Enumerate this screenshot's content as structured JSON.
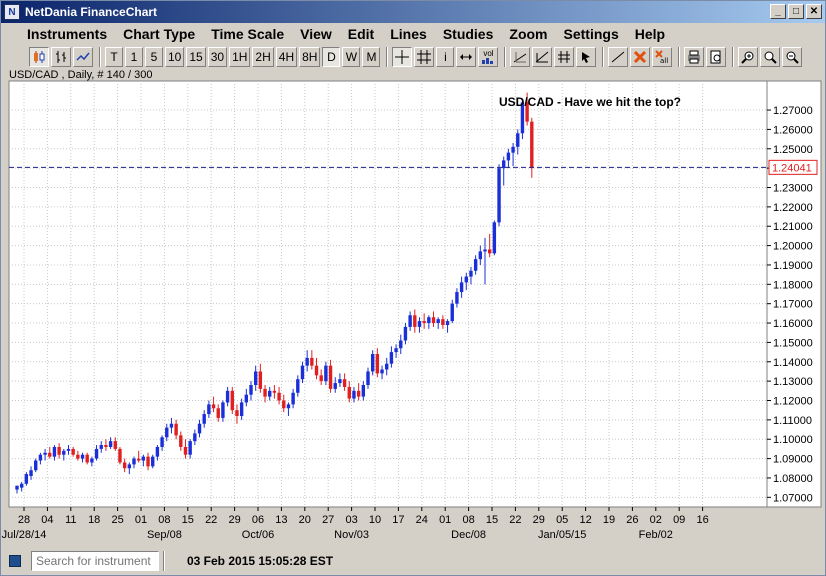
{
  "window": {
    "title": "NetDania FinanceChart"
  },
  "menu": [
    "Instruments",
    "Chart Type",
    "Time Scale",
    "View",
    "Edit",
    "Lines",
    "Studies",
    "Zoom",
    "Settings",
    "Help"
  ],
  "toolbar": {
    "periods": [
      "T",
      "1",
      "5",
      "10",
      "15",
      "30",
      "1H",
      "2H",
      "4H",
      "8H",
      "D",
      "W",
      "M"
    ],
    "active_period": "D",
    "vol_label": "vol",
    "info_label": "i"
  },
  "chart_label": "USD/CAD , Daily, # 140 / 300",
  "statusbar": {
    "search_placeholder": "Search for instrument",
    "datetime": "03 Feb 2015 15:05:28 EST"
  },
  "colors": {
    "up": "#1a2fd8",
    "down": "#e02020",
    "grid": "#c8c8c8",
    "price_line": "#202080",
    "price_label": "#e02020"
  },
  "chart_data": {
    "type": "candlestick",
    "instrument": "USD/CAD",
    "timeframe": "Daily",
    "annotation": "USD/CAD - Have we hit the top?",
    "current_price": "1.24041",
    "ylim": [
      1.065,
      1.285
    ],
    "yticks": [
      "1.07000",
      "1.08000",
      "1.09000",
      "1.10000",
      "1.11000",
      "1.12000",
      "1.13000",
      "1.14000",
      "1.15000",
      "1.16000",
      "1.17000",
      "1.18000",
      "1.19000",
      "1.20000",
      "1.21000",
      "1.22000",
      "1.23000",
      "1.24000",
      "1.25000",
      "1.26000",
      "1.27000"
    ],
    "xticks": [
      "28",
      "04",
      "11",
      "18",
      "25",
      "01",
      "08",
      "15",
      "22",
      "29",
      "06",
      "13",
      "20",
      "27",
      "03",
      "10",
      "17",
      "24",
      "01",
      "08",
      "15",
      "22",
      "29",
      "05",
      "12",
      "19",
      "26",
      "02",
      "09",
      "16"
    ],
    "month_labels": [
      {
        "label": "Jul/28/14",
        "tick": 0
      },
      {
        "label": "Sep/08",
        "tick": 6
      },
      {
        "label": "Oct/06",
        "tick": 10
      },
      {
        "label": "Nov/03",
        "tick": 14
      },
      {
        "label": "Dec/08",
        "tick": 19
      },
      {
        "label": "Jan/05/15",
        "tick": 23
      },
      {
        "label": "Feb/02",
        "tick": 27
      }
    ],
    "candles": [
      [
        1.074,
        1.076,
        1.072,
        1.076
      ],
      [
        1.075,
        1.078,
        1.073,
        1.077
      ],
      [
        1.077,
        1.083,
        1.076,
        1.082
      ],
      [
        1.081,
        1.086,
        1.079,
        1.084
      ],
      [
        1.084,
        1.09,
        1.083,
        1.089
      ],
      [
        1.089,
        1.093,
        1.087,
        1.092
      ],
      [
        1.092,
        1.095,
        1.089,
        1.093
      ],
      [
        1.093,
        1.096,
        1.09,
        1.091
      ],
      [
        1.091,
        1.097,
        1.089,
        1.096
      ],
      [
        1.096,
        1.098,
        1.09,
        1.092
      ],
      [
        1.092,
        1.095,
        1.089,
        1.094
      ],
      [
        1.094,
        1.097,
        1.092,
        1.095
      ],
      [
        1.095,
        1.096,
        1.091,
        1.092
      ],
      [
        1.092,
        1.094,
        1.089,
        1.09
      ],
      [
        1.09,
        1.093,
        1.088,
        1.092
      ],
      [
        1.092,
        1.093,
        1.087,
        1.088
      ],
      [
        1.088,
        1.091,
        1.086,
        1.09
      ],
      [
        1.09,
        1.097,
        1.089,
        1.095
      ],
      [
        1.095,
        1.099,
        1.093,
        1.097
      ],
      [
        1.097,
        1.1,
        1.094,
        1.096
      ],
      [
        1.096,
        1.101,
        1.095,
        1.099
      ],
      [
        1.099,
        1.101,
        1.094,
        1.095
      ],
      [
        1.095,
        1.096,
        1.087,
        1.088
      ],
      [
        1.088,
        1.09,
        1.083,
        1.085
      ],
      [
        1.085,
        1.088,
        1.082,
        1.087
      ],
      [
        1.087,
        1.091,
        1.085,
        1.09
      ],
      [
        1.09,
        1.094,
        1.088,
        1.089
      ],
      [
        1.089,
        1.092,
        1.086,
        1.091
      ],
      [
        1.091,
        1.093,
        1.084,
        1.086
      ],
      [
        1.086,
        1.092,
        1.085,
        1.091
      ],
      [
        1.091,
        1.097,
        1.089,
        1.096
      ],
      [
        1.096,
        1.102,
        1.094,
        1.101
      ],
      [
        1.101,
        1.108,
        1.099,
        1.106
      ],
      [
        1.106,
        1.111,
        1.103,
        1.108
      ],
      [
        1.108,
        1.11,
        1.1,
        1.102
      ],
      [
        1.102,
        1.104,
        1.094,
        1.096
      ],
      [
        1.096,
        1.1,
        1.09,
        1.092
      ],
      [
        1.092,
        1.1,
        1.09,
        1.099
      ],
      [
        1.099,
        1.105,
        1.097,
        1.103
      ],
      [
        1.103,
        1.11,
        1.101,
        1.108
      ],
      [
        1.108,
        1.115,
        1.106,
        1.113
      ],
      [
        1.113,
        1.12,
        1.111,
        1.118
      ],
      [
        1.118,
        1.122,
        1.114,
        1.116
      ],
      [
        1.116,
        1.118,
        1.109,
        1.111
      ],
      [
        1.111,
        1.12,
        1.109,
        1.119
      ],
      [
        1.119,
        1.127,
        1.117,
        1.125
      ],
      [
        1.125,
        1.127,
        1.113,
        1.115
      ],
      [
        1.115,
        1.118,
        1.108,
        1.112
      ],
      [
        1.112,
        1.121,
        1.11,
        1.119
      ],
      [
        1.119,
        1.126,
        1.117,
        1.123
      ],
      [
        1.123,
        1.13,
        1.12,
        1.128
      ],
      [
        1.128,
        1.138,
        1.125,
        1.135
      ],
      [
        1.135,
        1.139,
        1.124,
        1.126
      ],
      [
        1.126,
        1.128,
        1.119,
        1.122
      ],
      [
        1.122,
        1.127,
        1.12,
        1.125
      ],
      [
        1.125,
        1.128,
        1.121,
        1.124
      ],
      [
        1.124,
        1.127,
        1.118,
        1.12
      ],
      [
        1.12,
        1.123,
        1.114,
        1.116
      ],
      [
        1.116,
        1.119,
        1.112,
        1.118
      ],
      [
        1.118,
        1.126,
        1.116,
        1.124
      ],
      [
        1.124,
        1.133,
        1.122,
        1.131
      ],
      [
        1.131,
        1.14,
        1.129,
        1.138
      ],
      [
        1.138,
        1.146,
        1.135,
        1.142
      ],
      [
        1.142,
        1.146,
        1.136,
        1.138
      ],
      [
        1.138,
        1.142,
        1.131,
        1.133
      ],
      [
        1.133,
        1.136,
        1.128,
        1.13
      ],
      [
        1.13,
        1.14,
        1.128,
        1.138
      ],
      [
        1.138,
        1.141,
        1.124,
        1.126
      ],
      [
        1.126,
        1.132,
        1.124,
        1.129
      ],
      [
        1.129,
        1.134,
        1.127,
        1.131
      ],
      [
        1.131,
        1.134,
        1.125,
        1.127
      ],
      [
        1.127,
        1.13,
        1.119,
        1.121
      ],
      [
        1.121,
        1.127,
        1.119,
        1.125
      ],
      [
        1.125,
        1.129,
        1.12,
        1.122
      ],
      [
        1.122,
        1.13,
        1.12,
        1.128
      ],
      [
        1.128,
        1.137,
        1.126,
        1.135
      ],
      [
        1.135,
        1.146,
        1.133,
        1.144
      ],
      [
        1.144,
        1.147,
        1.132,
        1.134
      ],
      [
        1.134,
        1.138,
        1.131,
        1.136
      ],
      [
        1.136,
        1.142,
        1.133,
        1.139
      ],
      [
        1.139,
        1.148,
        1.137,
        1.145
      ],
      [
        1.145,
        1.149,
        1.142,
        1.147
      ],
      [
        1.147,
        1.154,
        1.144,
        1.151
      ],
      [
        1.151,
        1.16,
        1.149,
        1.158
      ],
      [
        1.158,
        1.166,
        1.156,
        1.164
      ],
      [
        1.164,
        1.167,
        1.155,
        1.158
      ],
      [
        1.158,
        1.163,
        1.155,
        1.161
      ],
      [
        1.161,
        1.165,
        1.157,
        1.16
      ],
      [
        1.16,
        1.164,
        1.157,
        1.163
      ],
      [
        1.163,
        1.166,
        1.158,
        1.16
      ],
      [
        1.16,
        1.163,
        1.157,
        1.162
      ],
      [
        1.162,
        1.164,
        1.157,
        1.159
      ],
      [
        1.159,
        1.162,
        1.155,
        1.161
      ],
      [
        1.161,
        1.172,
        1.16,
        1.17
      ],
      [
        1.17,
        1.178,
        1.168,
        1.176
      ],
      [
        1.176,
        1.184,
        1.173,
        1.181
      ],
      [
        1.181,
        1.186,
        1.177,
        1.184
      ],
      [
        1.184,
        1.189,
        1.18,
        1.187
      ],
      [
        1.187,
        1.195,
        1.185,
        1.193
      ],
      [
        1.193,
        1.2,
        1.19,
        1.197
      ],
      [
        1.197,
        1.204,
        1.18,
        1.198
      ],
      [
        1.198,
        1.206,
        1.194,
        1.196
      ],
      [
        1.196,
        1.213,
        1.195,
        1.212
      ],
      [
        1.212,
        1.242,
        1.21,
        1.24
      ],
      [
        1.24,
        1.246,
        1.231,
        1.244
      ],
      [
        1.244,
        1.25,
        1.24,
        1.248
      ],
      [
        1.248,
        1.253,
        1.241,
        1.251
      ],
      [
        1.251,
        1.26,
        1.247,
        1.258
      ],
      [
        1.258,
        1.276,
        1.255,
        1.274
      ],
      [
        1.274,
        1.279,
        1.262,
        1.264
      ],
      [
        1.264,
        1.266,
        1.235,
        1.24
      ]
    ]
  }
}
